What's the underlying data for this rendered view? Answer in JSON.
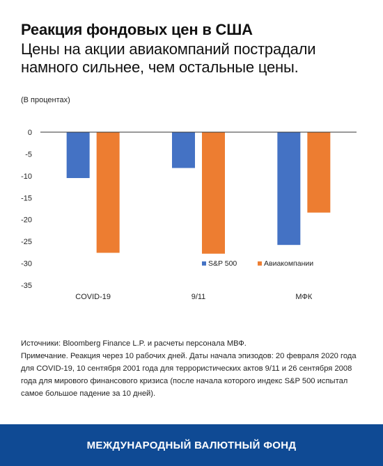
{
  "header": {
    "title": "Реакция фондовых цен в США",
    "subtitle": "Цены на акции авиакомпаний пострадали намного сильнее, чем остальные цены."
  },
  "chart_data": {
    "type": "bar",
    "unit_label": "(В процентах)",
    "categories": [
      "COVID-19",
      "9/11",
      "МФК"
    ],
    "series": [
      {
        "name": "S&P 500",
        "color": "#4472c4",
        "values": [
          -10.5,
          -8.2,
          -25.8
        ]
      },
      {
        "name": "Авиакомпании",
        "color": "#ed7d31",
        "values": [
          -27.6,
          -27.8,
          -18.4
        ]
      }
    ],
    "ylim": [
      -35,
      0
    ],
    "yticks": [
      0,
      -5,
      -10,
      -15,
      -20,
      -25,
      -30,
      -35
    ],
    "grid": false,
    "legend_position": "bottom-right"
  },
  "notes": {
    "sources": "Источники: Bloomberg Finance L.P. и расчеты персонала МВФ.",
    "note": "Примечание. Реакция через 10 рабочих дней. Даты начала эпизодов: 20 февраля 2020 года для COVID-19, 10 сентября 2001 года для террористических актов 9/11 и 26 сентября 2008 года для мирового финансового кризиса (после начала которого индекс S&P 500 испытал самое большое падение за 10 дней)."
  },
  "footer": {
    "org_name": "МЕЖДУНАРОДНЫЙ ВАЛЮТНЫЙ ФОНД"
  }
}
